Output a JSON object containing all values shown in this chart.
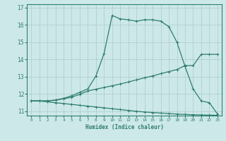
{
  "xlabel": "Humidex (Indice chaleur)",
  "bg_color": "#cce8e8",
  "line_color": "#2e7d6e",
  "grid_color": "#aacccc",
  "ylim": [
    10.75,
    17.2
  ],
  "xlim": [
    -0.5,
    23.5
  ],
  "yticks": [
    11,
    12,
    13,
    14,
    15,
    16,
    17
  ],
  "xticks": [
    0,
    1,
    2,
    3,
    4,
    5,
    6,
    7,
    8,
    9,
    10,
    11,
    12,
    13,
    14,
    15,
    16,
    17,
    18,
    19,
    20,
    21,
    22,
    23
  ],
  "line1_x": [
    0,
    1,
    2,
    3,
    4,
    5,
    6,
    7,
    8,
    9,
    10,
    11,
    12,
    13,
    14,
    15,
    16,
    17,
    18,
    19,
    20,
    21,
    22,
    23
  ],
  "line1_y": [
    11.6,
    11.6,
    11.6,
    11.65,
    11.75,
    11.9,
    12.1,
    12.3,
    13.05,
    14.35,
    16.55,
    16.35,
    16.3,
    16.22,
    16.3,
    16.3,
    16.22,
    15.9,
    15.0,
    13.6,
    12.3,
    11.6,
    11.5,
    10.85
  ],
  "line2_x": [
    0,
    1,
    2,
    3,
    4,
    5,
    6,
    7,
    8,
    9,
    10,
    11,
    12,
    13,
    14,
    15,
    16,
    17,
    18,
    19,
    20,
    21,
    22,
    23
  ],
  "line2_y": [
    11.6,
    11.6,
    11.6,
    11.65,
    11.72,
    11.82,
    11.98,
    12.18,
    12.28,
    12.38,
    12.48,
    12.58,
    12.7,
    12.82,
    12.94,
    13.05,
    13.18,
    13.3,
    13.42,
    13.65,
    13.65,
    14.3,
    14.3,
    14.3
  ],
  "line3_x": [
    0,
    1,
    2,
    3,
    4,
    5,
    6,
    7,
    8,
    9,
    10,
    11,
    12,
    13,
    14,
    15,
    16,
    17,
    18,
    19,
    20,
    21,
    22,
    23
  ],
  "line3_y": [
    11.6,
    11.6,
    11.55,
    11.5,
    11.45,
    11.4,
    11.35,
    11.3,
    11.25,
    11.2,
    11.15,
    11.1,
    11.05,
    11.0,
    10.96,
    10.93,
    10.9,
    10.87,
    10.84,
    10.82,
    10.8,
    10.79,
    10.78,
    10.77
  ]
}
